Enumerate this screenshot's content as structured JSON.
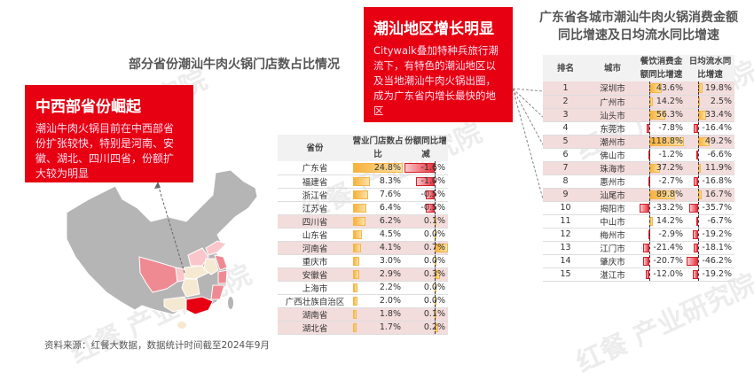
{
  "watermark": "红餐 产业研究院",
  "left_title": "部分省份潮汕牛肉火锅门店数占比情况",
  "right_title": "广东省各城市潮汕牛肉火锅消费金额同比增速及日均流水同比增速",
  "box1": {
    "heading": "中西部省份崛起",
    "text": "潮汕牛肉火锅目前在中西部省份扩张较快，特别是河南、安徽、湖北、四川四省，份额扩大较为明显"
  },
  "box2": {
    "heading": "潮汕地区增长明显",
    "text": "Citywalk叠加特种兵旅行潮流下，有特色的潮汕地区以及当地潮汕牛肉火锅出圈，成为广东省内增长最快的地区"
  },
  "province_table": {
    "headers": [
      "省份",
      "营业门店数占比",
      "份额同比增减"
    ],
    "rows": [
      {
        "name": "广东省",
        "share": 24.8,
        "share_label": "24.8%",
        "change": -1.6,
        "change_label": "-1.6%",
        "hl": false
      },
      {
        "name": "福建省",
        "share": 8.3,
        "share_label": "8.3%",
        "change": -1.0,
        "change_label": "-1.0%",
        "hl": false
      },
      {
        "name": "浙江省",
        "share": 7.6,
        "share_label": "7.6%",
        "change": -0.5,
        "change_label": "-0.5%",
        "hl": false
      },
      {
        "name": "江苏省",
        "share": 6.4,
        "share_label": "6.4%",
        "change": -0.5,
        "change_label": "-0.5%",
        "hl": false
      },
      {
        "name": "四川省",
        "share": 6.2,
        "share_label": "6.2%",
        "change": 0.1,
        "change_label": "0.1%",
        "hl": true
      },
      {
        "name": "山东省",
        "share": 4.5,
        "share_label": "4.5%",
        "change": 0.0,
        "change_label": "0.0%",
        "hl": false
      },
      {
        "name": "河南省",
        "share": 4.1,
        "share_label": "4.1%",
        "change": 0.7,
        "change_label": "0.7%",
        "hl": true
      },
      {
        "name": "重庆市",
        "share": 3.0,
        "share_label": "3.0%",
        "change": 0.0,
        "change_label": "0.0%",
        "hl": false
      },
      {
        "name": "安徽省",
        "share": 2.9,
        "share_label": "2.9%",
        "change": 0.3,
        "change_label": "0.3%",
        "hl": true
      },
      {
        "name": "上海市",
        "share": 2.2,
        "share_label": "2.2%",
        "change": 0.0,
        "change_label": "0.0%",
        "hl": false
      },
      {
        "name": "广西壮族自治区",
        "share": 2.0,
        "share_label": "2.0%",
        "change": 0.0,
        "change_label": "0.0%",
        "hl": false
      },
      {
        "name": "湖南省",
        "share": 1.8,
        "share_label": "1.8%",
        "change": 0.1,
        "change_label": "0.1%",
        "hl": true
      },
      {
        "name": "湖北省",
        "share": 1.7,
        "share_label": "1.7%",
        "change": 0.2,
        "change_label": "0.2%",
        "hl": true
      }
    ]
  },
  "city_table": {
    "headers": [
      "排名",
      "城市",
      "餐饮消费金额同比增速",
      "日均流水同比增速"
    ],
    "rows": [
      {
        "rank": "1",
        "city": "深圳市",
        "a": 43.6,
        "a_label": "43.6%",
        "b": 19.8,
        "b_label": "19.8%",
        "hl": true
      },
      {
        "rank": "2",
        "city": "广州市",
        "a": 14.2,
        "a_label": "14.2%",
        "b": 2.5,
        "b_label": "2.5%",
        "hl": true
      },
      {
        "rank": "3",
        "city": "汕头市",
        "a": 56.3,
        "a_label": "56.3%",
        "b": 33.4,
        "b_label": "33.4%",
        "hl": true
      },
      {
        "rank": "4",
        "city": "东莞市",
        "a": -7.8,
        "a_label": "-7.8%",
        "b": -16.4,
        "b_label": "-16.4%",
        "hl": false
      },
      {
        "rank": "5",
        "city": "潮州市",
        "a": 118.8,
        "a_label": "118.8%",
        "b": 49.2,
        "b_label": "49.2%",
        "hl": true
      },
      {
        "rank": "6",
        "city": "佛山市",
        "a": -1.2,
        "a_label": "-1.2%",
        "b": -6.6,
        "b_label": "-6.6%",
        "hl": false
      },
      {
        "rank": "7",
        "city": "珠海市",
        "a": 37.2,
        "a_label": "37.2%",
        "b": 11.9,
        "b_label": "11.9%",
        "hl": true
      },
      {
        "rank": "8",
        "city": "惠州市",
        "a": -2.7,
        "a_label": "-2.7%",
        "b": -16.8,
        "b_label": "-16.8%",
        "hl": false
      },
      {
        "rank": "9",
        "city": "汕尾市",
        "a": 89.8,
        "a_label": "89.8%",
        "b": 16.7,
        "b_label": "16.7%",
        "hl": true
      },
      {
        "rank": "10",
        "city": "揭阳市",
        "a": -33.2,
        "a_label": "-33.2%",
        "b": -35.7,
        "b_label": "-35.7%",
        "hl": false
      },
      {
        "rank": "11",
        "city": "中山市",
        "a": 14.2,
        "a_label": "14.2%",
        "b": -6.7,
        "b_label": "-6.7%",
        "hl": false
      },
      {
        "rank": "12",
        "city": "梅州市",
        "a": -2.9,
        "a_label": "-2.9%",
        "b": -19.2,
        "b_label": "-19.2%",
        "hl": false
      },
      {
        "rank": "13",
        "city": "江门市",
        "a": -21.4,
        "a_label": "-21.4%",
        "b": -18.1,
        "b_label": "-18.1%",
        "hl": false
      },
      {
        "rank": "14",
        "city": "肇庆市",
        "a": -20.7,
        "a_label": "-20.7%",
        "b": -46.2,
        "b_label": "-46.2%",
        "hl": false
      },
      {
        "rank": "15",
        "city": "湛江市",
        "a": -12.0,
        "a_label": "-12.0%",
        "b": -19.2,
        "b_label": "-19.2%",
        "hl": false
      }
    ]
  },
  "source": "资料来源：红餐大数据，数据统计时间截至2024年9月",
  "colors": {
    "red": "#e60012",
    "bar_pos": "#f7b13a",
    "bar_neg": "#e8323e",
    "row_hl": "#f3dcdc"
  }
}
